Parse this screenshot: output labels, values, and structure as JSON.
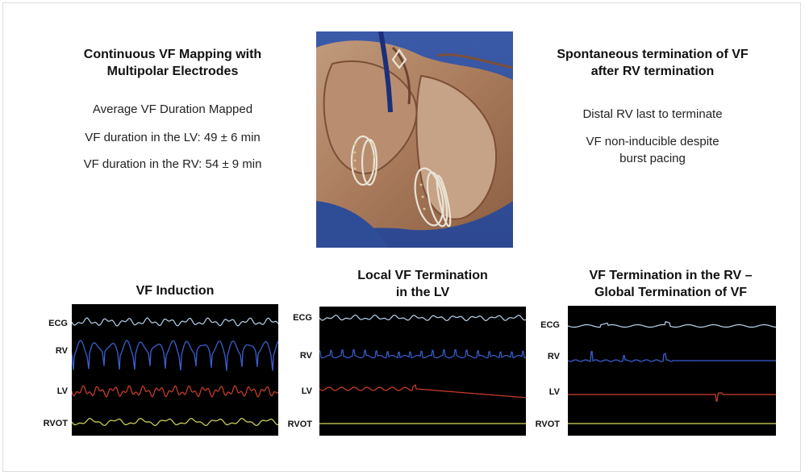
{
  "left_block": {
    "title_line1": "Continuous VF Mapping with",
    "title_line2": "Multipolar Electrodes",
    "subtitle": "Average VF Duration Mapped",
    "lv_duration": "VF duration in the LV: 49 ± 6 min",
    "rv_duration": "VF duration in the RV: 54 ± 9 min"
  },
  "right_block": {
    "title_line1": "Spontaneous termination of VF",
    "title_line2": "after RV termination",
    "point1": "Distal RV last to terminate",
    "point2_line1": "VF non-inducible despite",
    "point2_line2": "burst pacing"
  },
  "panels": [
    {
      "title_line1": "VF Induction",
      "title_line2": ""
    },
    {
      "title_line1": "Local VF Termination",
      "title_line2": "in the LV"
    },
    {
      "title_line1": "VF Termination in the RV –",
      "title_line2": "Global Termination of VF"
    }
  ],
  "leads": [
    "ECG",
    "RV",
    "LV",
    "RVOT"
  ],
  "trace_colors": {
    "ECG": "#b9d3ee",
    "RV": "#3a5fd0",
    "LV": "#d0402a",
    "RVOT": "#d6d85a"
  }
}
